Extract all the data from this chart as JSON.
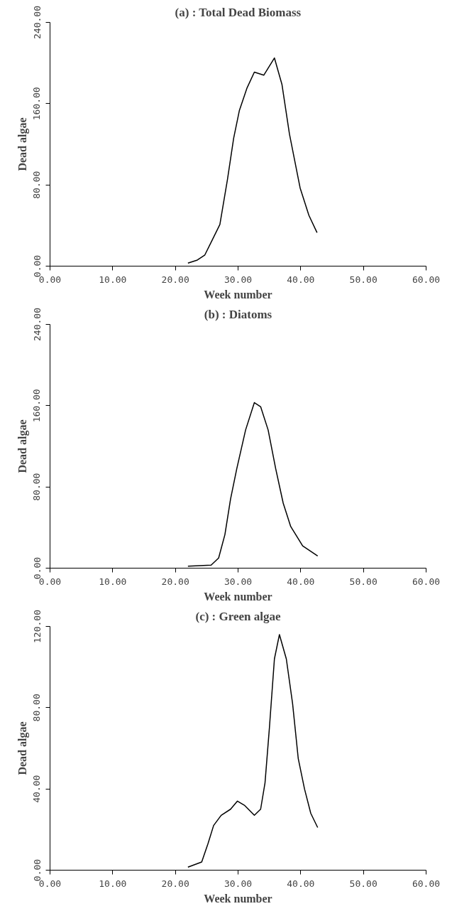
{
  "chart_data": [
    {
      "type": "line",
      "title": "(a) : Total Dead Biomass",
      "xlabel": "Week number",
      "ylabel": "Dead algae",
      "color": "#000000",
      "x": [
        22.0,
        23.5,
        24.7,
        25.9,
        27.1,
        28.3,
        29.3,
        30.2,
        31.4,
        32.6,
        34.1,
        35.8,
        37.0,
        38.2,
        39.9,
        41.3,
        42.6
      ],
      "values": [
        3,
        6,
        11,
        26,
        41,
        85,
        126,
        153,
        175,
        191,
        188,
        205,
        179,
        130,
        77,
        50,
        33
      ],
      "xlim": [
        0,
        60
      ],
      "ylim": [
        0,
        240
      ],
      "xticks": [
        {
          "value": 0,
          "label": "0.00"
        },
        {
          "value": 10,
          "label": "10.00"
        },
        {
          "value": 20,
          "label": "20.00"
        },
        {
          "value": 30,
          "label": "30.00"
        },
        {
          "value": 40,
          "label": "40.00"
        },
        {
          "value": 50,
          "label": "50.00"
        },
        {
          "value": 60,
          "label": "60.00"
        }
      ],
      "yticks": [
        {
          "value": 0,
          "label": "0.00"
        },
        {
          "value": 80,
          "label": "80.00"
        },
        {
          "value": 160,
          "label": "160.00"
        },
        {
          "value": 240,
          "label": "240.00"
        }
      ],
      "grid": false,
      "legend": false
    },
    {
      "type": "line",
      "title": "(b) : Diatoms",
      "xlabel": "Week number",
      "ylabel": "Dead algae",
      "color": "#000000",
      "x": [
        22.0,
        25.7,
        26.9,
        27.9,
        28.8,
        29.8,
        31.2,
        32.6,
        33.6,
        34.8,
        36.0,
        37.2,
        38.4,
        40.3,
        42.7
      ],
      "values": [
        2,
        3,
        10,
        33,
        68,
        98,
        136,
        163,
        159,
        136,
        98,
        64,
        41,
        22,
        12
      ],
      "xlim": [
        0,
        60
      ],
      "ylim": [
        0,
        240
      ],
      "xticks": [
        {
          "value": 0,
          "label": "0.00"
        },
        {
          "value": 10,
          "label": "10.00"
        },
        {
          "value": 20,
          "label": "20.00"
        },
        {
          "value": 30,
          "label": "30.00"
        },
        {
          "value": 40,
          "label": "40.00"
        },
        {
          "value": 50,
          "label": "50.00"
        },
        {
          "value": 60,
          "label": "60.00"
        }
      ],
      "yticks": [
        {
          "value": 0,
          "label": "0.00"
        },
        {
          "value": 80,
          "label": "80.00"
        },
        {
          "value": 160,
          "label": "160.00"
        },
        {
          "value": 240,
          "label": "240.00"
        }
      ],
      "grid": false,
      "legend": false
    },
    {
      "type": "line",
      "title": "(c) : Green algae",
      "xlabel": "Week number",
      "ylabel": "Dead algae",
      "color": "#000000",
      "x": [
        22.0,
        24.2,
        25.2,
        26.1,
        27.3,
        28.8,
        29.9,
        31.0,
        32.6,
        33.6,
        34.3,
        35.0,
        35.8,
        36.6,
        37.7,
        38.7,
        39.6,
        40.6,
        41.6,
        42.7
      ],
      "values": [
        1.5,
        4,
        13,
        22,
        27,
        30,
        34,
        32,
        27,
        30,
        43,
        70,
        104,
        116,
        104,
        82,
        55,
        40,
        28,
        21
      ],
      "xlim": [
        0,
        60
      ],
      "ylim": [
        0,
        120
      ],
      "xticks": [
        {
          "value": 0,
          "label": "0.00"
        },
        {
          "value": 10,
          "label": "10.00"
        },
        {
          "value": 20,
          "label": "20.00"
        },
        {
          "value": 30,
          "label": "30.00"
        },
        {
          "value": 40,
          "label": "40.00"
        },
        {
          "value": 50,
          "label": "50.00"
        },
        {
          "value": 60,
          "label": "60.00"
        }
      ],
      "yticks": [
        {
          "value": 0,
          "label": "0.00"
        },
        {
          "value": 40,
          "label": "40.00"
        },
        {
          "value": 80,
          "label": "80.00"
        },
        {
          "value": 120,
          "label": "120.00"
        }
      ],
      "grid": false,
      "legend": false
    }
  ]
}
